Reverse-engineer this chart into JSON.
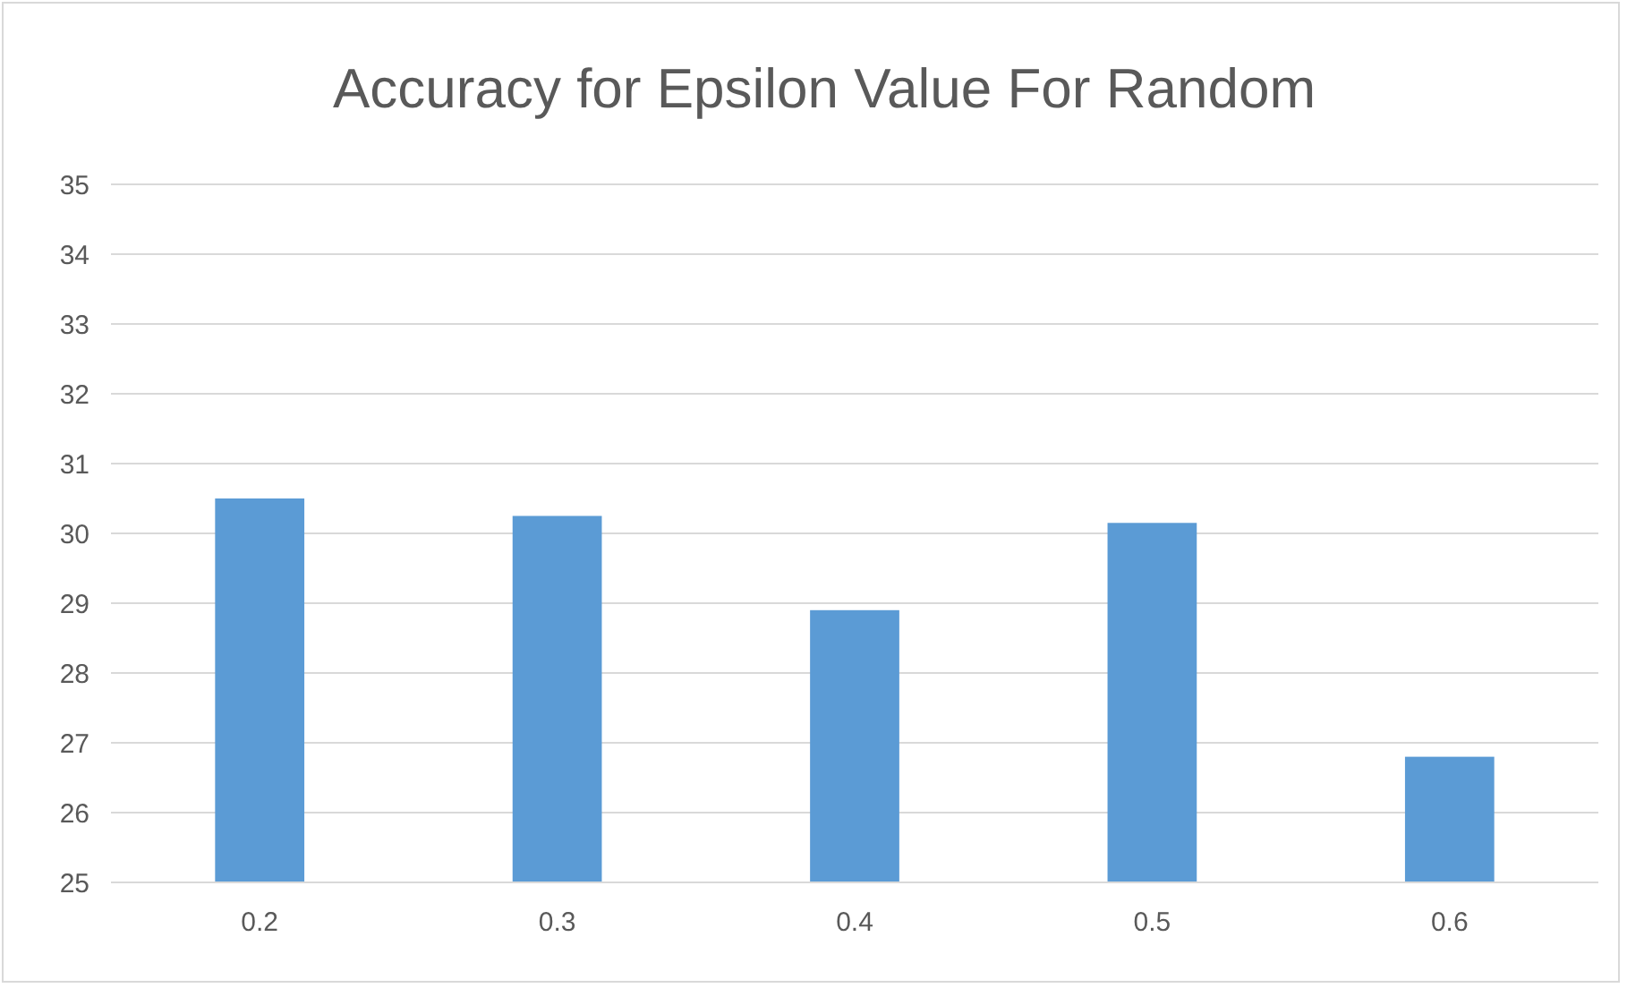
{
  "chart_data": {
    "type": "bar",
    "title": "Accuracy for Epsilon Value For Random",
    "categories": [
      "0.2",
      "0.3",
      "0.4",
      "0.5",
      "0.6"
    ],
    "values": [
      30.5,
      30.25,
      28.9,
      30.15,
      26.8
    ],
    "color": "#5b9bd5",
    "ylim": [
      25,
      35
    ],
    "yticks": [
      25,
      26,
      27,
      28,
      29,
      30,
      31,
      32,
      33,
      34,
      35
    ],
    "grid": "y"
  }
}
